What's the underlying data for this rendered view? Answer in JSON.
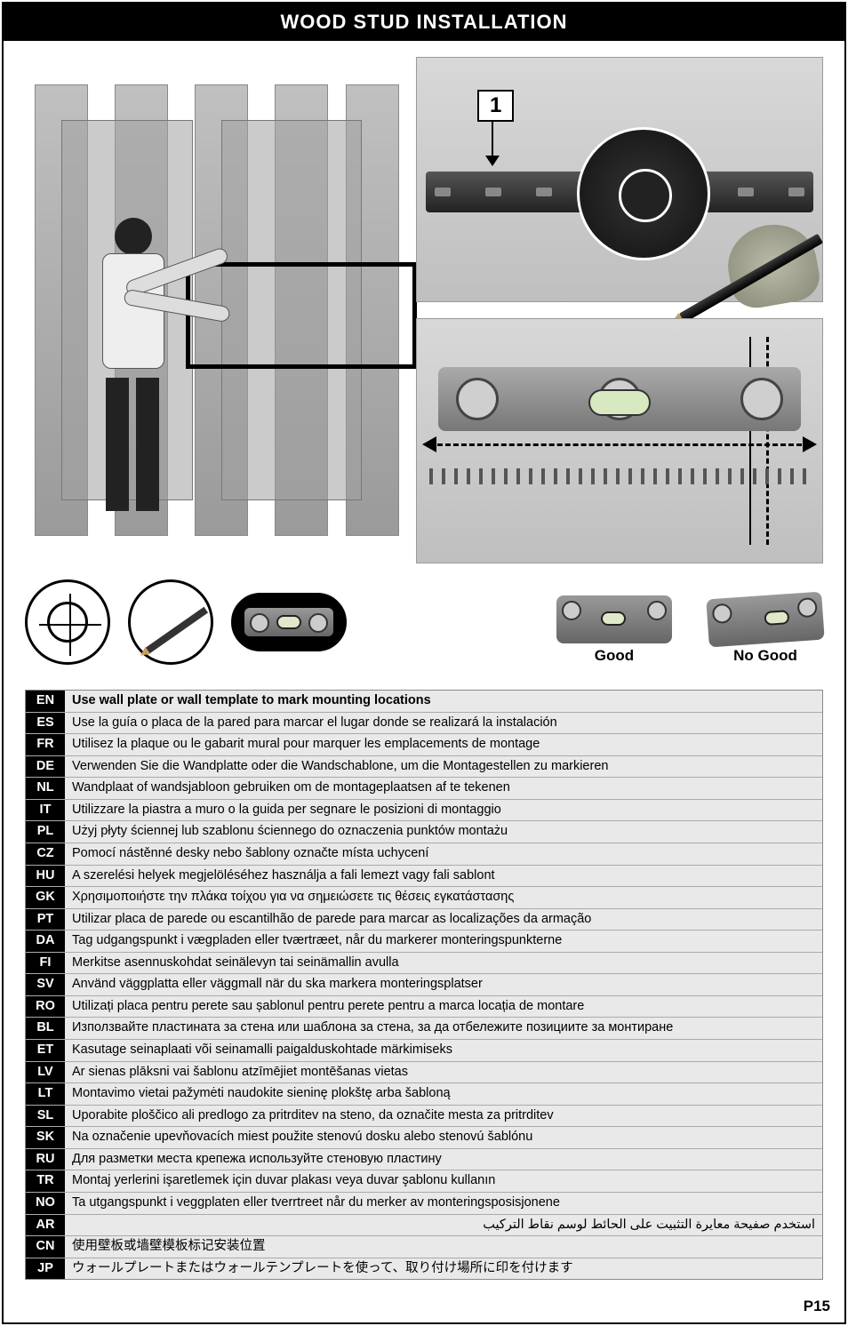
{
  "title": "WOOD STUD INSTALLATION",
  "step_badge": "1",
  "level_check": {
    "good": "Good",
    "no_good": "No Good"
  },
  "page_number": "P15",
  "colors": {
    "header_bg": "#000000",
    "header_fg": "#ffffff",
    "row_bg": "#e9e9e9",
    "code_bg": "#000000"
  },
  "instructions": [
    {
      "code": "EN",
      "text": "Use wall plate or wall template to mark mounting locations",
      "bold": true
    },
    {
      "code": "ES",
      "text": "Use la guía o placa de la pared para marcar el lugar donde se realizará la instalación"
    },
    {
      "code": "FR",
      "text": "Utilisez la plaque ou le gabarit mural pour marquer les emplacements de montage"
    },
    {
      "code": "DE",
      "text": "Verwenden Sie die Wandplatte oder die Wandschablone, um die Montagestellen zu markieren"
    },
    {
      "code": "NL",
      "text": "Wandplaat of wandsjabloon gebruiken om de montageplaatsen af te tekenen"
    },
    {
      "code": "IT",
      "text": "Utilizzare la piastra a muro o la guida per segnare le posizioni di montaggio"
    },
    {
      "code": "PL",
      "text": "Użyj płyty ściennej lub szablonu ściennego do oznaczenia punktów montażu"
    },
    {
      "code": "CZ",
      "text": "Pomocí nástěnné desky nebo šablony označte místa uchycení"
    },
    {
      "code": "HU",
      "text": "A szerelési helyek megjelöléséhez használja a fali lemezt vagy fali sablont"
    },
    {
      "code": "GK",
      "text": "Χρησιμοποιήστε την πλάκα τοίχου για να σημειώσετε τις θέσεις εγκατάστασης"
    },
    {
      "code": "PT",
      "text": "Utilizar placa de parede ou escantilhão de parede para marcar as localizações da armação"
    },
    {
      "code": "DA",
      "text": "Tag udgangspunkt i vægpladen eller tværtræet, når du markerer monteringspunkterne"
    },
    {
      "code": "FI",
      "text": "Merkitse asennuskohdat seinälevyn tai seinämallin avulla"
    },
    {
      "code": "SV",
      "text": "Använd väggplatta eller väggmall när du ska markera monteringsplatser"
    },
    {
      "code": "RO",
      "text": "Utilizați placa pentru perete sau șablonul pentru perete pentru a marca locația de montare"
    },
    {
      "code": "BL",
      "text": "Използвайте пластината за стена или шаблона за стена, за да отбележите позициите за монтиране"
    },
    {
      "code": "ET",
      "text": "Kasutage seinaplaati või seinamalli paigalduskohtade märkimiseks"
    },
    {
      "code": "LV",
      "text": "Ar sienas plāksni vai šablonu atzīmējiet montēšanas vietas"
    },
    {
      "code": "LT",
      "text": "Montavimo vietai pažymėti naudokite sieninę plokštę arba šabloną"
    },
    {
      "code": "SL",
      "text": "Uporabite ploščico ali predlogo za pritrditev na steno, da označite mesta za pritrditev"
    },
    {
      "code": "SK",
      "text": "Na označenie upevňovacích miest použite stenovú dosku alebo stenovú šablónu"
    },
    {
      "code": "RU",
      "text": "Для разметки места крепежа используйте стеновую пластину"
    },
    {
      "code": "TR",
      "text": "Montaj yerlerini işaretlemek için duvar plakası veya duvar şablonu kullanın"
    },
    {
      "code": "NO",
      "text": "Ta utgangspunkt i veggplaten eller tverrtreet når du merker av monteringsposisjonene"
    },
    {
      "code": "AR",
      "text": "استخدم صفيحة معايرة التثبيت على الحائط لوسم نقاط التركيب",
      "rtl": true
    },
    {
      "code": "CN",
      "text": "使用壁板或墙壁模板标记安装位置"
    },
    {
      "code": "JP",
      "text": "ウォールプレートまたはウォールテンプレートを使って、取り付け場所に印を付けます"
    }
  ]
}
